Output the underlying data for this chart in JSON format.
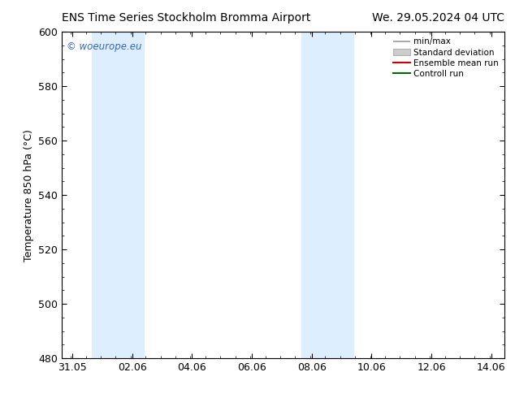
{
  "title_left": "ENS Time Series Stockholm Bromma Airport",
  "title_right": "We. 29.05.2024 04 UTC",
  "ylabel": "Temperature 850 hPa (°C)",
  "ylim": [
    480,
    600
  ],
  "yticks": [
    480,
    500,
    520,
    540,
    560,
    580,
    600
  ],
  "xlim_min": 30.7,
  "xlim_max": 45.5,
  "xtick_labels": [
    "31.05",
    "02.06",
    "04.06",
    "06.06",
    "08.06",
    "10.06",
    "12.06",
    "14.06"
  ],
  "xtick_positions": [
    31.05,
    33.05,
    35.05,
    37.05,
    39.05,
    41.05,
    43.05,
    45.05
  ],
  "shaded_bands": [
    {
      "xmin": 31.55,
      "xmax": 32.55
    },
    {
      "xmin": 32.55,
      "xmax": 33.55
    },
    {
      "xmin": 38.55,
      "xmax": 39.55
    },
    {
      "xmin": 39.55,
      "xmax": 40.55
    }
  ],
  "shaded_color": "#ddeeff",
  "watermark_text": "© woeurope.eu",
  "watermark_color": "#3366cc",
  "bg_color": "#ffffff",
  "plot_bg_color": "#ffffff",
  "font_size": 9,
  "title_font_size": 10,
  "minor_tick_count": 4
}
